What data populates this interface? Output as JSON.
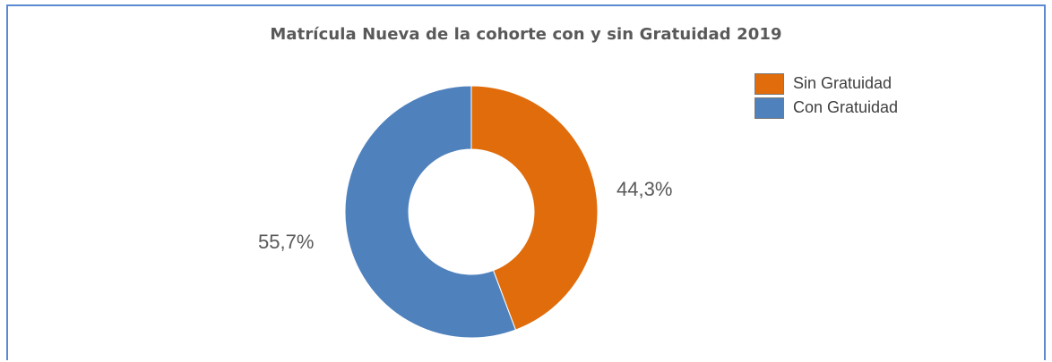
{
  "chart_data": {
    "type": "pie",
    "title": "Matrícula Nueva de la cohorte con y sin Gratuidad 2019",
    "slices": [
      {
        "label": "Sin Gratuidad",
        "value": 44.3,
        "display": "44,3%",
        "color": "#e06c0b"
      },
      {
        "label": "Con Gratuidad",
        "value": 55.7,
        "display": "55,7%",
        "color": "#4f81bd"
      }
    ],
    "legend_position": "top-right",
    "donut": true
  }
}
